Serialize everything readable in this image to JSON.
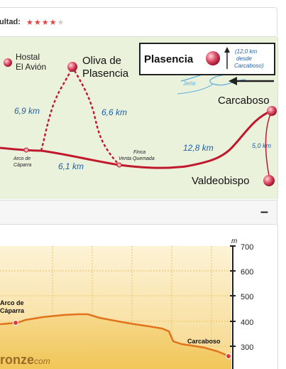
{
  "rating": {
    "label": "ultad:",
    "stars_filled": 4,
    "stars_total": 5
  },
  "map": {
    "places": {
      "hostal": [
        "Hostal",
        "El Avión"
      ],
      "oliva": [
        "Oliva de",
        "Plasencia"
      ],
      "plasencia": "Plasencia",
      "plasencia_note": [
        "(12,0 km",
        "desde",
        "Carcaboso)"
      ],
      "carcaboso": "Carcaboso",
      "valdeobispo": "Valdeobispo",
      "arco": [
        "Arco de",
        "Cáparra"
      ],
      "finca": [
        "Finca",
        "Venta Quemada"
      ],
      "river": "Jerte"
    },
    "distances": {
      "arco_oliva": "6,9 km",
      "oliva_finca": "6,6 km",
      "arco_finca": "6,1 km",
      "finca_carcaboso": "12,8 km",
      "carcaboso_valdeobispo": "5,0 km"
    },
    "colors": {
      "route": "#c0182c",
      "distance_text": "#1f5fa8",
      "river": "#5aaee0"
    }
  },
  "section": {
    "collapse_symbol": "–"
  },
  "profile": {
    "unit": "m",
    "y_ticks": [
      "700",
      "600",
      "500",
      "400",
      "300"
    ],
    "labels": {
      "arco": [
        "Arco de",
        "Cáparra"
      ],
      "carcaboso": "Carcaboso"
    },
    "watermark": [
      "ronze",
      "com"
    ],
    "line_color": "#e0731c"
  }
}
